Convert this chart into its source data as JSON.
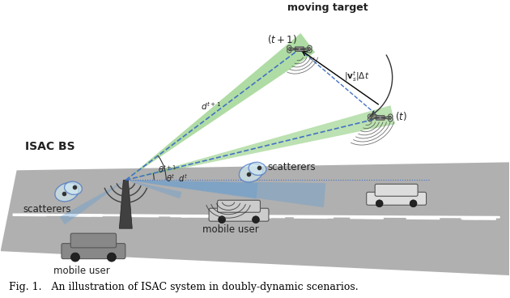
{
  "title": "Fig. 1.   An illustration of ISAC system in doubly-dynamic scenarios.",
  "bg_color": "#ffffff",
  "road_color": "#a0a0a0",
  "road_stripe_color": "#ffffff",
  "beam_color_blue": "#5b9bd5",
  "beam_color_green": "#92d050",
  "annotation_color": "#000000",
  "isac_bs_label": "ISAC BS",
  "moving_target_label": "moving target",
  "scatterers_label1": "scatterers",
  "scatterers_label2": "scatterers",
  "mobile_user_label1": "mobile user",
  "mobile_user_label2": "mobile user"
}
